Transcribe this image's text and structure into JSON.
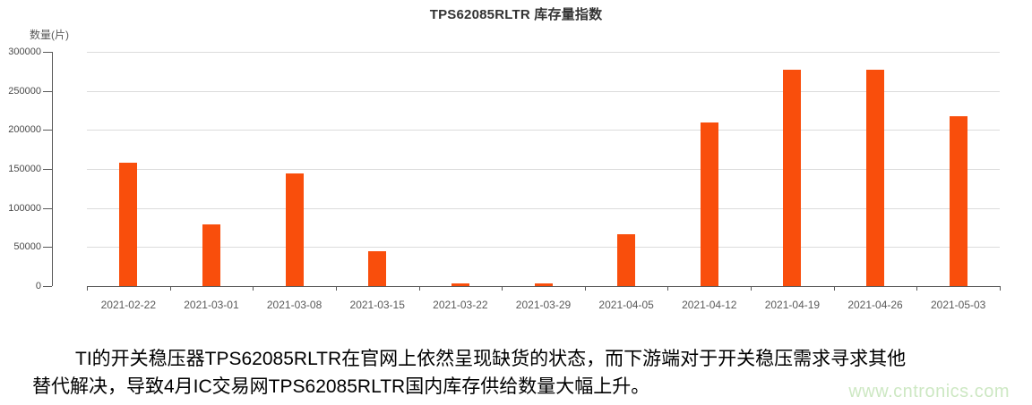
{
  "chart_data": {
    "type": "bar",
    "title": "TPS62085RLTR 库存量指数",
    "ylabel": "数量(片)",
    "xlabel": "",
    "categories": [
      "2021-02-22",
      "2021-03-01",
      "2021-03-08",
      "2021-03-15",
      "2021-03-22",
      "2021-03-29",
      "2021-04-05",
      "2021-04-12",
      "2021-04-19",
      "2021-04-26",
      "2021-05-03"
    ],
    "values": [
      158000,
      79000,
      144000,
      45000,
      4000,
      4000,
      66000,
      209000,
      277000,
      277000,
      217000
    ],
    "ylim": [
      0,
      300000
    ],
    "ytick_step": 50000,
    "grid": true,
    "legend": "none",
    "bar_color": "#f94e0c",
    "gridline_color": "#dcdcdc",
    "axis_color": "#595959",
    "tick_label_color": "#595959"
  },
  "caption": {
    "line1": "TI的开关稳压器TPS62085RLTR在官网上依然呈现缺货的状态，而下游端对于开关稳压需求寻求其他",
    "line2": "替代解决，导致4月IC交易网TPS62085RLTR国内库存供给数量大幅上升。"
  },
  "watermark": "www.cntronics.com"
}
